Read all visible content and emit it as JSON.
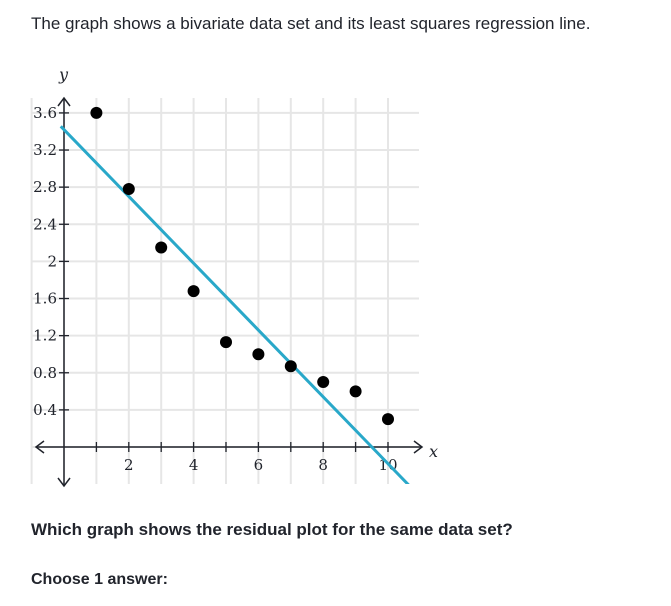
{
  "intro_text": "The graph shows a bivariate data set and its least squares regression line.",
  "question_text": "Which graph shows the residual plot for the same data set?",
  "choose_text": "Choose 1 answer:",
  "chart_data": {
    "type": "scatter",
    "xlabel": "x",
    "ylabel": "y",
    "xlim": [
      -1,
      11
    ],
    "ylim": [
      -0.4,
      3.8
    ],
    "x_ticks": [
      2,
      4,
      6,
      8,
      10
    ],
    "y_ticks": [
      0.4,
      0.8,
      1.2,
      1.6,
      2,
      2.4,
      2.8,
      3.2,
      3.6
    ],
    "x_tick_labels": [
      "2",
      "4",
      "6",
      "8",
      "10"
    ],
    "y_tick_labels": [
      "0.4",
      "0.8",
      "1.2",
      "1.6",
      "2",
      "2.4",
      "2.8",
      "3.2",
      "3.6"
    ],
    "grid": true,
    "points": [
      {
        "x": 1,
        "y": 3.6
      },
      {
        "x": 2,
        "y": 2.78
      },
      {
        "x": 3,
        "y": 2.15
      },
      {
        "x": 4,
        "y": 1.68
      },
      {
        "x": 5,
        "y": 1.13
      },
      {
        "x": 6,
        "y": 1.0
      },
      {
        "x": 7,
        "y": 0.87
      },
      {
        "x": 8,
        "y": 0.7
      },
      {
        "x": 9,
        "y": 0.6
      },
      {
        "x": 10,
        "y": 0.3
      }
    ],
    "regression_line": {
      "slope": -0.36,
      "intercept": 3.42,
      "x_start": -0.1,
      "x_end": 10.7
    },
    "line_color": "#29a8c9",
    "point_color": "#000000",
    "grid_color": "#e6e6e6"
  }
}
